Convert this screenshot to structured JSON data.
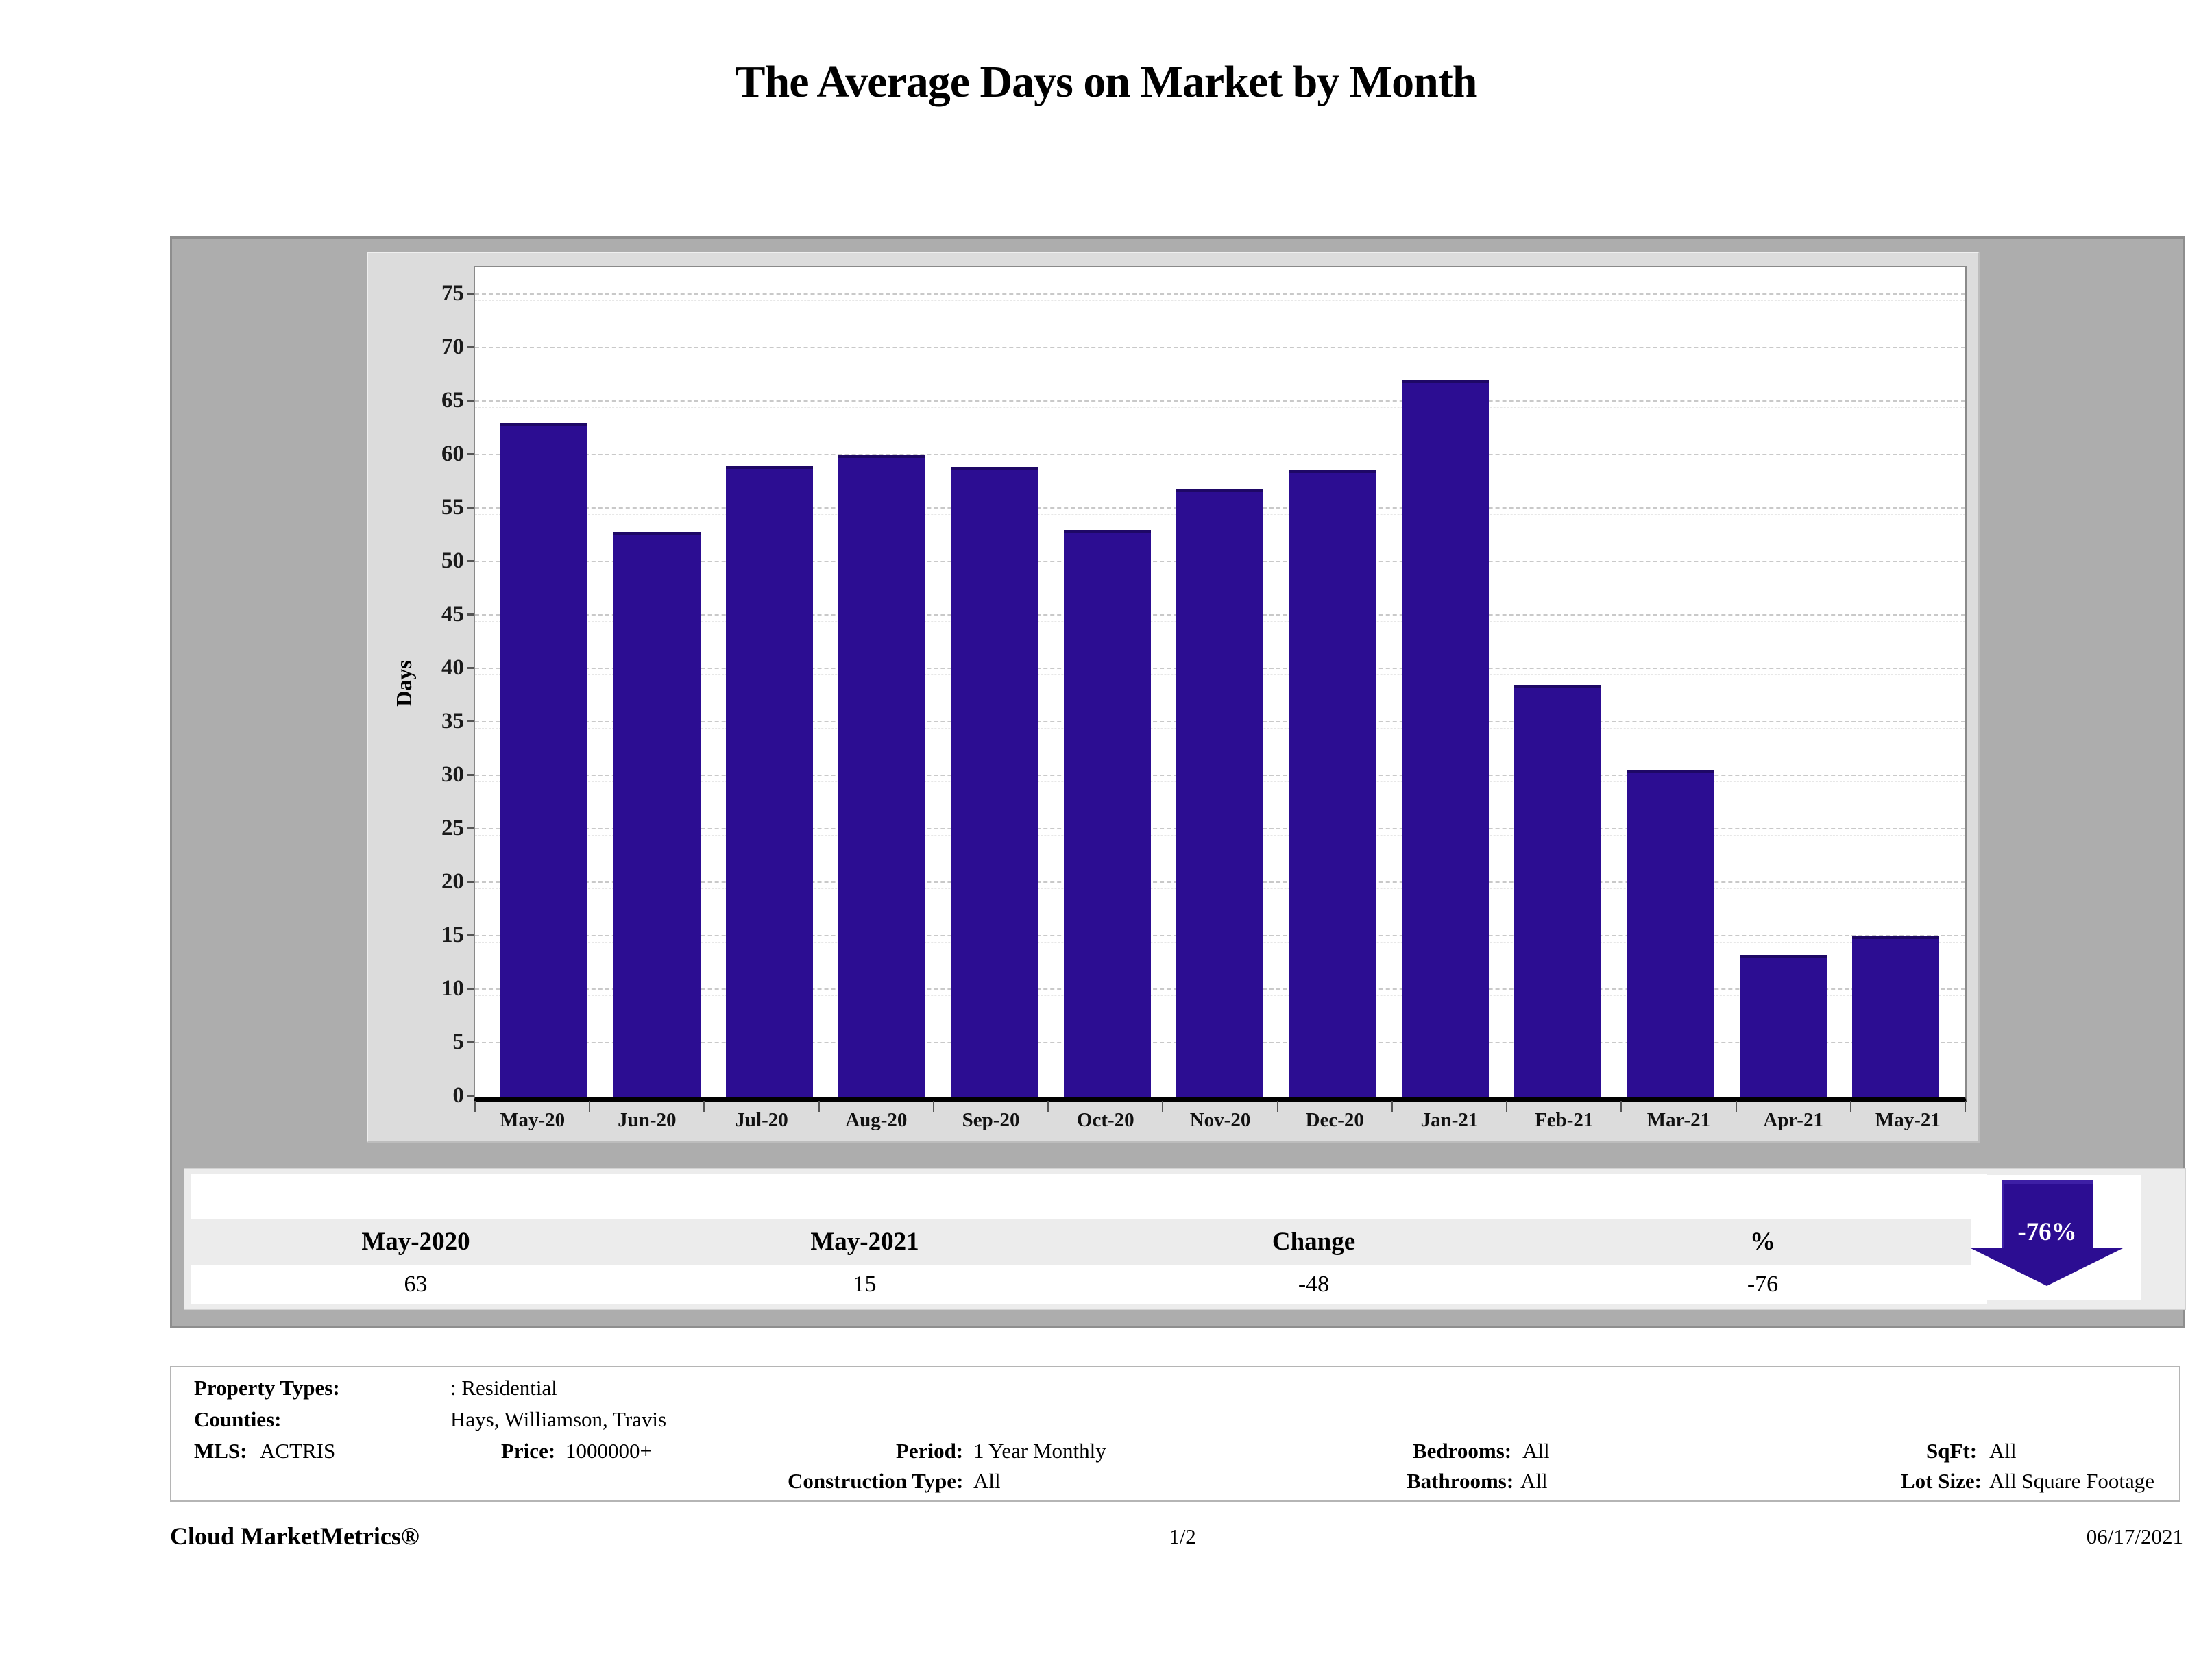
{
  "title": "The Average Days on Market by Month",
  "chart_data": {
    "type": "bar",
    "title": "The Average Days on Market by Month",
    "xlabel": "",
    "ylabel": "Days",
    "categories": [
      "May-20",
      "Jun-20",
      "Jul-20",
      "Aug-20",
      "Sep-20",
      "Oct-20",
      "Nov-20",
      "Dec-20",
      "Jan-21",
      "Feb-21",
      "Mar-21",
      "Apr-21",
      "May-21"
    ],
    "values": [
      63,
      52.8,
      59,
      60,
      58.9,
      53,
      56.8,
      58.6,
      67,
      38.5,
      30.6,
      13.3,
      15
    ],
    "ylim": [
      0,
      77.5
    ],
    "ytick_step": 5,
    "ytick_max": 75,
    "grid": true,
    "legend_position": "none",
    "bar_color": "#2c0d92"
  },
  "summary_table": {
    "columns": [
      "May-2020",
      "May-2021",
      "Change",
      "%"
    ],
    "values": [
      "63",
      "15",
      "-48",
      "-76"
    ]
  },
  "arrow": {
    "label": "-76%",
    "direction": "down",
    "color": "#2c0d92"
  },
  "filters": {
    "property_types": {
      "label": "Property Types:",
      "value": ": Residential"
    },
    "counties": {
      "label": "Counties:",
      "value": "Hays, Williamson, Travis"
    },
    "mls": {
      "label": "MLS:",
      "value": "ACTRIS"
    },
    "price": {
      "label": "Price:",
      "value": "1000000+"
    },
    "period": {
      "label": "Period:",
      "value": "1 Year Monthly"
    },
    "construction_type": {
      "label": "Construction Type:",
      "value": "All"
    },
    "bedrooms": {
      "label": "Bedrooms:",
      "value": "All"
    },
    "bathrooms": {
      "label": "Bathrooms:",
      "value": "All"
    },
    "sqft": {
      "label": "SqFt:",
      "value": "All"
    },
    "lot_size": {
      "label": "Lot Size:",
      "value": "All Square Footage"
    }
  },
  "footer": {
    "brand": "Cloud MarketMetrics®",
    "page": "1/2",
    "date": "06/17/2021"
  },
  "colors": {
    "bar": "#2c0d92",
    "panel": "#adadad",
    "chart_frame": "#dcdcdc",
    "table_bg": "#ececec",
    "gridline": "#c9c9c9"
  }
}
